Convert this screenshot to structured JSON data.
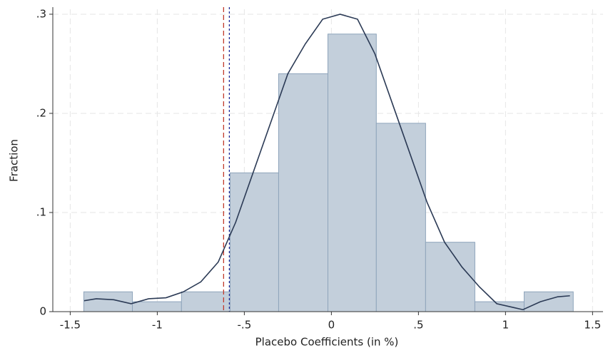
{
  "chart_data": {
    "type": "histogram",
    "xlabel": "Placebo Coefficients (in %)",
    "ylabel": "Fraction",
    "bins": [
      -1.422,
      -1.143,
      -0.861,
      -0.582,
      -0.303,
      -0.02,
      0.258,
      0.541,
      0.824,
      1.107,
      1.389
    ],
    "values": [
      0.02,
      0.01,
      0.02,
      0.14,
      0.24,
      0.28,
      0.19,
      0.07,
      0.01,
      0.02
    ],
    "color": "#c3cfdb",
    "edgecolor": "#8ea4bb",
    "density": {
      "color": "#2b3a55",
      "x": [
        -1.42,
        -1.35,
        -1.25,
        -1.15,
        -1.05,
        -0.95,
        -0.85,
        -0.75,
        -0.65,
        -0.55,
        -0.45,
        -0.35,
        -0.25,
        -0.15,
        -0.05,
        0.05,
        0.15,
        0.25,
        0.35,
        0.45,
        0.55,
        0.65,
        0.75,
        0.85,
        0.95,
        1.05,
        1.1,
        1.2,
        1.3,
        1.37
      ],
      "values": [
        0.011,
        0.013,
        0.012,
        0.008,
        0.013,
        0.014,
        0.02,
        0.03,
        0.05,
        0.09,
        0.14,
        0.19,
        0.24,
        0.27,
        0.295,
        0.3,
        0.295,
        0.26,
        0.21,
        0.16,
        0.11,
        0.07,
        0.045,
        0.025,
        0.008,
        0.004,
        0.002,
        0.01,
        0.015,
        0.016
      ]
    },
    "vlines": [
      {
        "value": -0.619,
        "color": "#c0392b",
        "style": "dashed"
      },
      {
        "value": -0.586,
        "color": "#1f2a99",
        "style": "dotted"
      }
    ],
    "xlim": [
      -1.6,
      1.56
    ],
    "ylim": [
      0,
      0.305
    ],
    "xticks": [
      -1.5,
      -1,
      {
        "value": -0.5,
        "label": "-.5"
      },
      0,
      {
        "value": 0.5,
        "label": ".5"
      },
      1,
      1.5
    ],
    "yticks": [
      0,
      {
        "value": 0.1,
        "label": ".1"
      },
      {
        "value": 0.2,
        "label": ".2"
      },
      {
        "value": 0.3,
        "label": ".3"
      }
    ],
    "grid": true
  }
}
